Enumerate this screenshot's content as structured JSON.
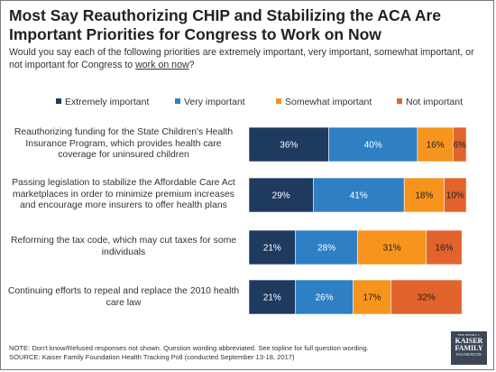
{
  "title": "Most Say Reauthorizing CHIP and Stabilizing the ACA Are Important Priorities for Congress to Work on Now",
  "subtitle_prefix": "Would you say each of the following priorities are extremely important, very important, somewhat important, or not important for Congress to ",
  "subtitle_underlined": "work on now",
  "subtitle_suffix": "?",
  "note_line1": "NOTE: Don't know/Refused responses not shown. Question wording abbreviated. See topline for full question wording.",
  "note_line2": "SOURCE: Kaiser Family Foundation Health Tracking Poll (conducted September 13-18, 2017)",
  "logo": {
    "line1": "THE HENRY J.",
    "line2a": "KAISER",
    "line2b": "FAMILY",
    "line3": "FOUNDATION"
  },
  "chart_data": {
    "type": "bar",
    "orientation": "horizontal",
    "stacked": true,
    "categories": [
      "Reauthorizing funding for the State Children's Health Insurance Program, which provides health care coverage for uninsured children",
      "Passing legislation to stabilize the Affordable Care Act marketplaces in order to minimize premium increases and encourage more insurers to offer health plans",
      "Reforming the tax code, which may cut taxes for some individuals",
      "Continuing efforts to repeal and replace the 2010 health care law"
    ],
    "series": [
      {
        "name": "Extremely important",
        "color": "#1f3a5f",
        "values": [
          36,
          29,
          21,
          21
        ]
      },
      {
        "name": "Very important",
        "color": "#2f7fc5",
        "values": [
          40,
          41,
          28,
          26
        ]
      },
      {
        "name": "Somewhat important",
        "color": "#f7941d",
        "values": [
          16,
          18,
          31,
          17
        ]
      },
      {
        "name": "Not important",
        "color": "#e2632c",
        "values": [
          6,
          10,
          16,
          32
        ]
      }
    ],
    "data_labels": [
      [
        "36%",
        "40%",
        "16%",
        "6%"
      ],
      [
        "29%",
        "41%",
        "18%",
        "10%"
      ],
      [
        "21%",
        "28%",
        "31%",
        "16%"
      ],
      [
        "21%",
        "26%",
        "17%",
        "32%"
      ]
    ],
    "xlim": [
      0,
      100
    ],
    "legend_position": "top",
    "grid": false
  }
}
